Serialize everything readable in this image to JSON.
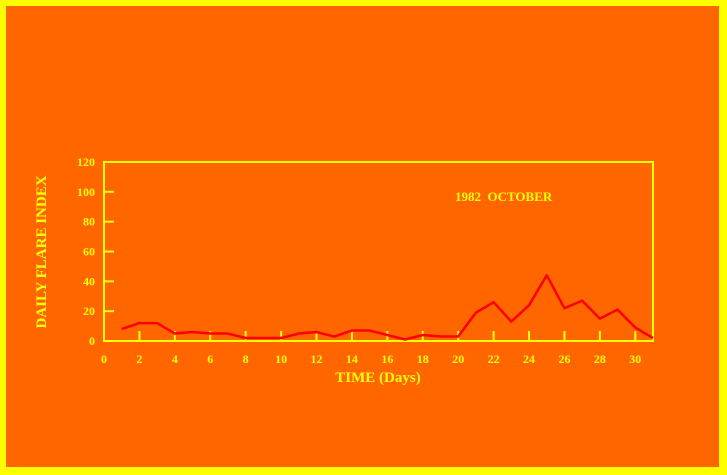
{
  "chart_data": {
    "type": "line",
    "title": "",
    "annotation": "1982  OCTOBER",
    "xlabel": "TIME (Days)",
    "ylabel": "DAILY FLARE INDEX",
    "xlim": [
      0,
      31
    ],
    "ylim": [
      0,
      120
    ],
    "xticks": [
      0,
      2,
      4,
      6,
      8,
      10,
      12,
      14,
      16,
      18,
      20,
      22,
      24,
      26,
      28,
      30
    ],
    "yticks": [
      0,
      20,
      40,
      60,
      80,
      100,
      120
    ],
    "grid": false,
    "x": [
      1,
      2,
      3,
      4,
      5,
      6,
      7,
      8,
      9,
      10,
      11,
      12,
      13,
      14,
      15,
      16,
      17,
      18,
      19,
      20,
      21,
      22,
      23,
      24,
      25,
      26,
      27,
      28,
      29,
      30,
      31
    ],
    "values": [
      8,
      12,
      12,
      5,
      6,
      5,
      5,
      2,
      2,
      2,
      5,
      6,
      3,
      7,
      7,
      4,
      1,
      4,
      3,
      3,
      19,
      26,
      13,
      24,
      44,
      22,
      27,
      15,
      21,
      9,
      2
    ],
    "colors": {
      "background": "#ff6600",
      "border": "#ffff00",
      "axes": "#ffff00",
      "line": "#ff0000"
    }
  }
}
